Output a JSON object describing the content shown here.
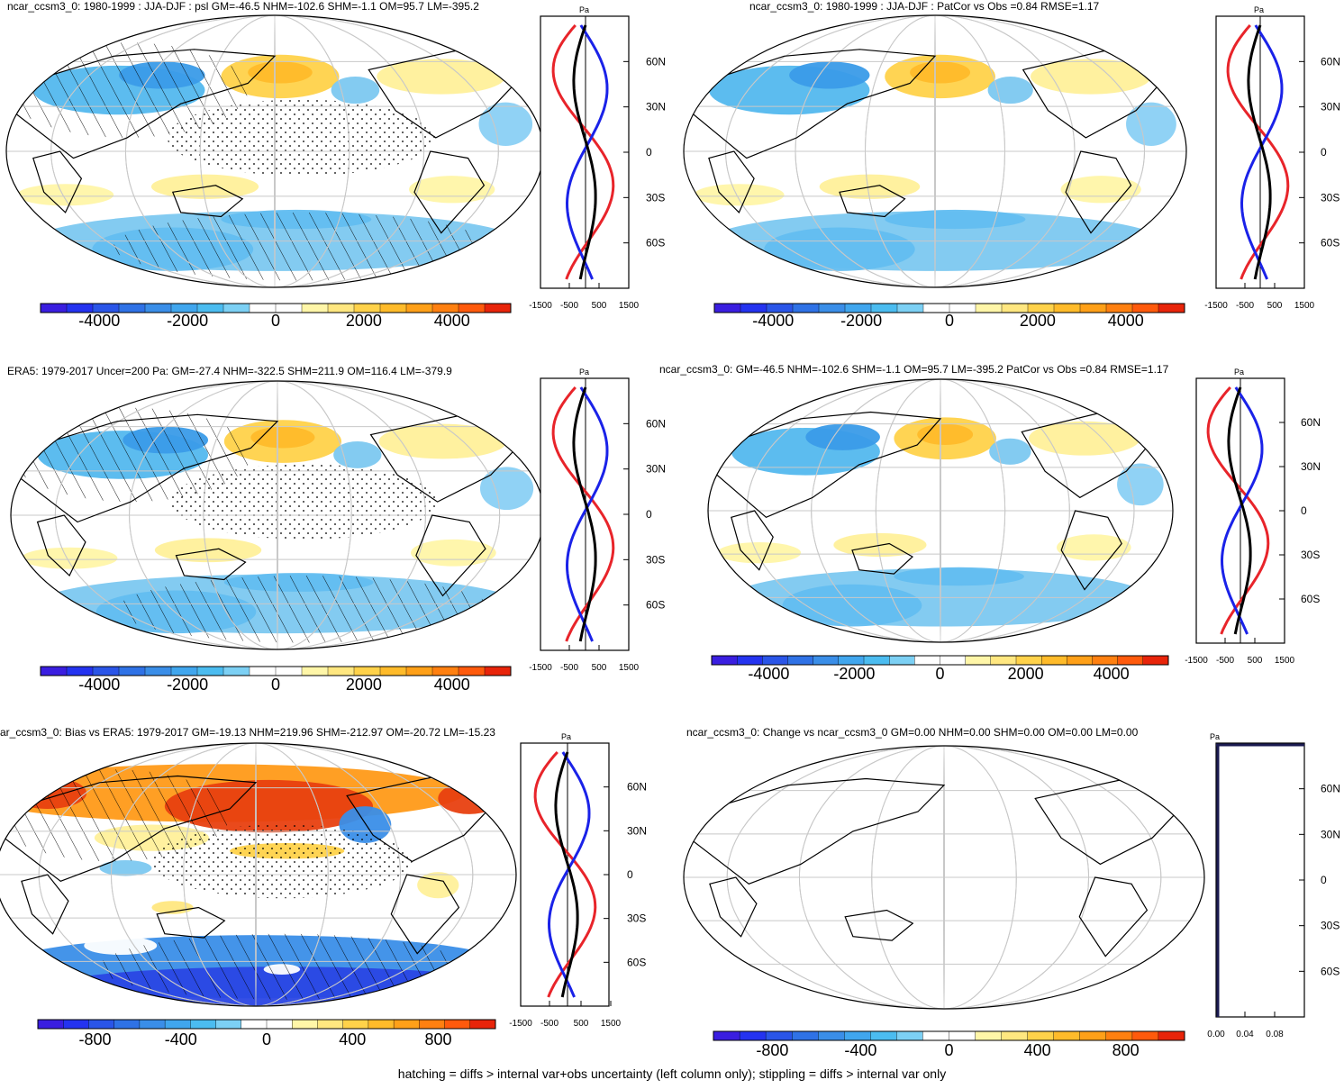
{
  "panels": [
    {
      "title": "ncar_ccsm3_0: 1980-1999 : JJA-DJF : psl GM=-46.5 NHM=-102.6 SHM=-1.1 OM=95.7 LM=-395.2",
      "colorbar_labels": [
        "-4000",
        "-2000",
        "0",
        "2000",
        "4000"
      ],
      "profile_x_labels": [
        "-1500",
        "-500",
        "500",
        "1500"
      ],
      "profile_unit": "Pa",
      "lat_labels": [
        "60N",
        "30N",
        "0",
        "30S",
        "60S"
      ],
      "hatched": true
    },
    {
      "title": "ncar_ccsm3_0: 1980-1999 : JJA-DJF : PatCor vs Obs =0.84 RMSE=1.17",
      "colorbar_labels": [
        "-4000",
        "-2000",
        "0",
        "2000",
        "4000"
      ],
      "profile_x_labels": [
        "-1500",
        "-500",
        "500",
        "1500"
      ],
      "profile_unit": "Pa",
      "lat_labels": [
        "60N",
        "30N",
        "0",
        "30S",
        "60S"
      ],
      "hatched": false
    },
    {
      "title": "ERA5: 1979-2017 Uncer=200 Pa: GM=-27.4 NHM=-322.5 SHM=211.9 OM=116.4 LM=-379.9",
      "colorbar_labels": [
        "-4000",
        "-2000",
        "0",
        "2000",
        "4000"
      ],
      "profile_x_labels": [
        "-1500",
        "-500",
        "500",
        "1500"
      ],
      "profile_unit": "Pa",
      "lat_labels": [
        "60N",
        "30N",
        "0",
        "30S",
        "60S"
      ],
      "hatched": true
    },
    {
      "title": "ncar_ccsm3_0: GM=-46.5 NHM=-102.6 SHM=-1.1 OM=95.7 LM=-395.2 PatCor vs Obs =0.84 RMSE=1.17",
      "colorbar_labels": [
        "-4000",
        "-2000",
        "0",
        "2000",
        "4000"
      ],
      "profile_x_labels": [
        "-1500",
        "-500",
        "500",
        "1500"
      ],
      "profile_unit": "Pa",
      "lat_labels": [
        "60N",
        "30N",
        "0",
        "30S",
        "60S"
      ],
      "hatched": false
    },
    {
      "title": "ar_ccsm3_0: Bias vs ERA5: 1979-2017 GM=-19.13 NHM=219.96 SHM=-212.97 OM=-20.72 LM=-15.23",
      "colorbar_labels": [
        "-800",
        "-400",
        "0",
        "400",
        "800"
      ],
      "profile_x_labels": [
        "-1500",
        "-500",
        "500",
        "1500"
      ],
      "profile_unit": "Pa",
      "lat_labels": [
        "60N",
        "30N",
        "0",
        "30S",
        "60S"
      ],
      "hatched": true
    },
    {
      "title": "ncar_ccsm3_0: Change vs ncar_ccsm3_0 GM=0.00 NHM=0.00 SHM=0.00 OM=0.00 LM=0.00",
      "colorbar_labels": [
        "-800",
        "-400",
        "0",
        "400",
        "800"
      ],
      "profile_x_labels": [
        "0.00",
        "0.04",
        "0.08"
      ],
      "profile_unit": "Pa",
      "lat_labels": [
        "60N",
        "30N",
        "0",
        "30S",
        "60S"
      ],
      "hatched": false
    }
  ],
  "colorbar_colors": [
    "#3a1ee0",
    "#2433f0",
    "#2a55e8",
    "#2f72e6",
    "#3a8ee8",
    "#40a6ee",
    "#4bbcf0",
    "#7cd0f4",
    "#ffffff",
    "#ffffff",
    "#fff6a8",
    "#ffe780",
    "#ffd24a",
    "#ffbb2a",
    "#ffa018",
    "#ff8010",
    "#ff5a0c",
    "#e8240a"
  ],
  "footer": "hatching = diffs > internal var+obs uncertainty (left column only); stippling = diffs > internal var only"
}
